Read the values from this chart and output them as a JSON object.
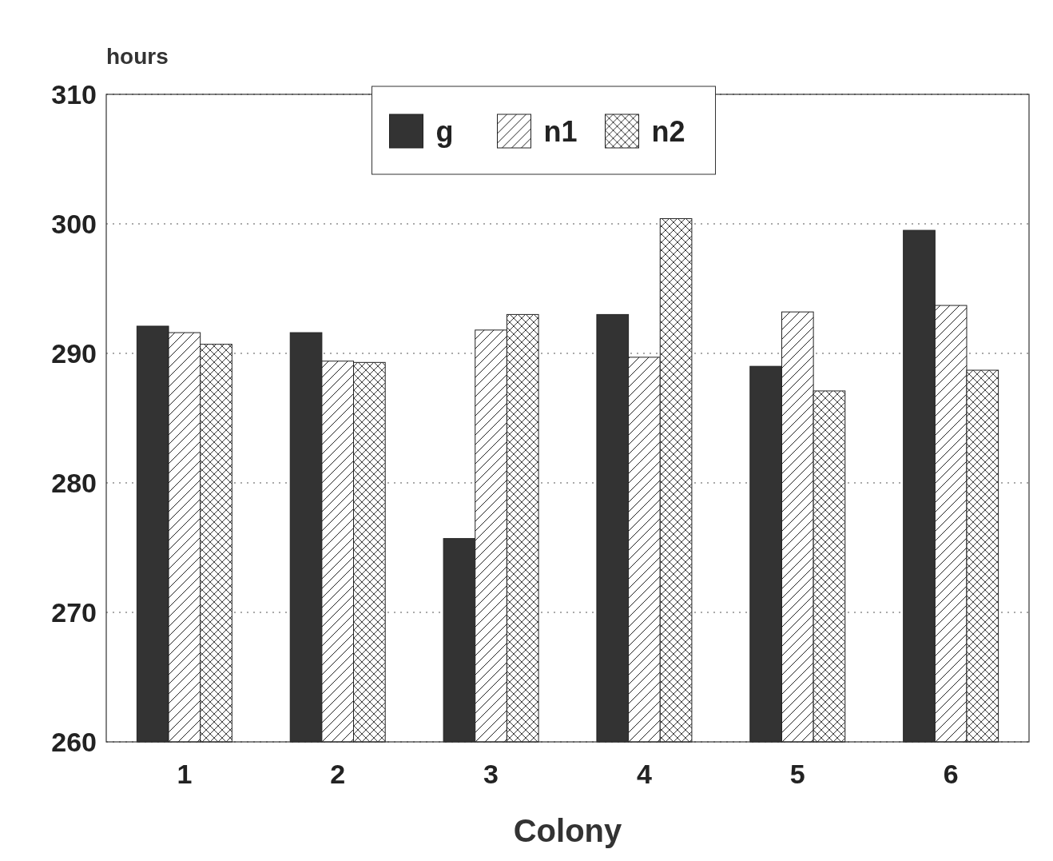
{
  "chart_data": {
    "type": "bar",
    "xlabel": "Colony",
    "ylabel": "hours",
    "categories": [
      "1",
      "2",
      "3",
      "4",
      "5",
      "6"
    ],
    "series": [
      {
        "name": "g",
        "color": "#333333",
        "values": [
          292.1,
          291.6,
          275.7,
          293.0,
          289.0,
          299.5
        ]
      },
      {
        "name": "n1",
        "color": "#ffffff",
        "values": [
          291.6,
          289.4,
          291.8,
          289.7,
          293.2,
          293.7
        ]
      },
      {
        "name": "n2",
        "color": "#ffffff",
        "values": [
          290.7,
          289.3,
          293.0,
          300.4,
          287.1,
          288.7
        ]
      }
    ],
    "ylim": [
      260,
      310
    ],
    "yticks": [
      260,
      270,
      280,
      290,
      300,
      310
    ],
    "grid": "y",
    "legend": "top"
  }
}
